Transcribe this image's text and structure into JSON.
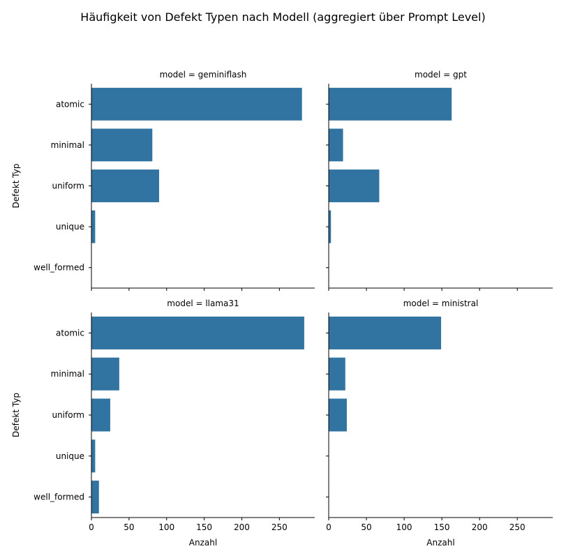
{
  "chart_data": {
    "type": "bar",
    "orientation": "horizontal",
    "title": "Häufigkeit von Defekt Typen nach Modell (aggregiert über Prompt Level)",
    "xlabel": "Anzahl",
    "ylabel": "Defekt Typ",
    "categories": [
      "atomic",
      "minimal",
      "uniform",
      "unique",
      "well_formed"
    ],
    "xlim": [
      0,
      297
    ],
    "xticks": [
      0,
      50,
      100,
      150,
      200,
      250
    ],
    "bar_color": "#3274a1",
    "grid": false,
    "facets": [
      {
        "label": "model = geminiflash",
        "values": [
          280,
          81,
          90,
          5,
          0
        ]
      },
      {
        "label": "model = gpt",
        "values": [
          163,
          19,
          67,
          3,
          0
        ]
      },
      {
        "label": "model = llama31",
        "values": [
          283,
          37,
          25,
          5,
          10
        ]
      },
      {
        "label": "model = ministral",
        "values": [
          149,
          22,
          24,
          0,
          0
        ]
      }
    ]
  }
}
